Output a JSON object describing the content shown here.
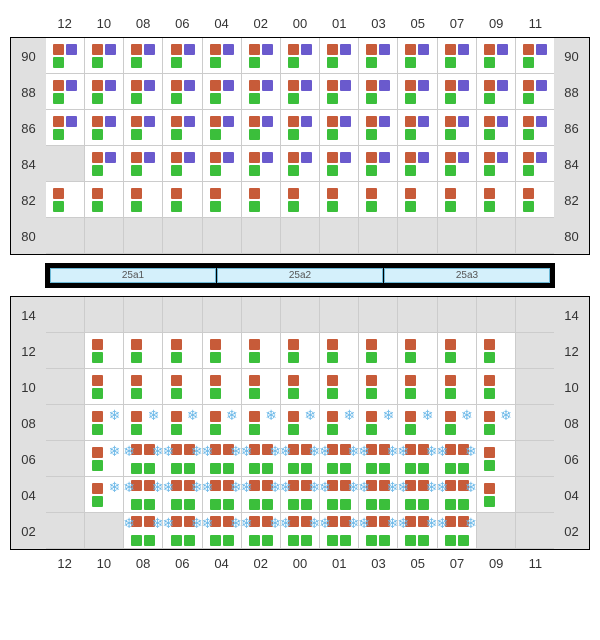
{
  "colors": {
    "orange": "#c75b39",
    "purple": "#6a5acd",
    "green": "#3bbf3b",
    "snowflake": "#6bb8e8",
    "cell_filled": "#ffffff",
    "cell_empty": "#e0e0e0",
    "grid_line": "#cccccc",
    "border": "#000000",
    "banner_bg": "#d4f0fb",
    "banner_border": "#6bb8d6"
  },
  "top": {
    "cols": [
      "12",
      "10",
      "08",
      "06",
      "04",
      "02",
      "00",
      "01",
      "03",
      "05",
      "07",
      "09",
      "11"
    ],
    "rows": [
      "90",
      "88",
      "86",
      "84",
      "82",
      "80"
    ],
    "cells": [
      [
        {
          "t": "op"
        },
        {
          "t": "op"
        },
        {
          "t": "op"
        },
        {
          "t": "op"
        },
        {
          "t": "op"
        },
        {
          "t": "op"
        },
        {
          "t": "op"
        },
        {
          "t": "op"
        },
        {
          "t": "op"
        },
        {
          "t": "op"
        },
        {
          "t": "op"
        },
        {
          "t": "op"
        },
        {
          "t": "op"
        }
      ],
      [
        {
          "t": "op"
        },
        {
          "t": "op"
        },
        {
          "t": "op"
        },
        {
          "t": "op"
        },
        {
          "t": "op"
        },
        {
          "t": "op"
        },
        {
          "t": "op"
        },
        {
          "t": "op"
        },
        {
          "t": "op"
        },
        {
          "t": "op"
        },
        {
          "t": "op"
        },
        {
          "t": "op"
        },
        {
          "t": "op"
        }
      ],
      [
        {
          "t": "op"
        },
        {
          "t": "op"
        },
        {
          "t": "op"
        },
        {
          "t": "op"
        },
        {
          "t": "op"
        },
        {
          "t": "op"
        },
        {
          "t": "op"
        },
        {
          "t": "op"
        },
        {
          "t": "op"
        },
        {
          "t": "op"
        },
        {
          "t": "op"
        },
        {
          "t": "op"
        },
        {
          "t": "op"
        }
      ],
      [
        {
          "t": "e"
        },
        {
          "t": "op"
        },
        {
          "t": "op"
        },
        {
          "t": "op"
        },
        {
          "t": "op"
        },
        {
          "t": "op"
        },
        {
          "t": "op"
        },
        {
          "t": "op"
        },
        {
          "t": "op"
        },
        {
          "t": "op"
        },
        {
          "t": "op"
        },
        {
          "t": "op"
        },
        {
          "t": "op"
        }
      ],
      [
        {
          "t": "og"
        },
        {
          "t": "og"
        },
        {
          "t": "og"
        },
        {
          "t": "og"
        },
        {
          "t": "og"
        },
        {
          "t": "og"
        },
        {
          "t": "og"
        },
        {
          "t": "og"
        },
        {
          "t": "og"
        },
        {
          "t": "og"
        },
        {
          "t": "og"
        },
        {
          "t": "og"
        },
        {
          "t": "og"
        }
      ],
      [
        {
          "t": "e"
        },
        {
          "t": "e"
        },
        {
          "t": "e"
        },
        {
          "t": "e"
        },
        {
          "t": "e"
        },
        {
          "t": "e"
        },
        {
          "t": "e"
        },
        {
          "t": "e"
        },
        {
          "t": "e"
        },
        {
          "t": "e"
        },
        {
          "t": "e"
        },
        {
          "t": "e"
        },
        {
          "t": "e"
        }
      ]
    ]
  },
  "banner": [
    "25a1",
    "25a2",
    "25a3"
  ],
  "bottom": {
    "cols": [
      "12",
      "10",
      "08",
      "06",
      "04",
      "02",
      "00",
      "01",
      "03",
      "05",
      "07",
      "09",
      "11"
    ],
    "rows": [
      "14",
      "12",
      "10",
      "08",
      "06",
      "04",
      "02"
    ],
    "cells": [
      [
        {
          "t": "e"
        },
        {
          "t": "e"
        },
        {
          "t": "e"
        },
        {
          "t": "e"
        },
        {
          "t": "e"
        },
        {
          "t": "e"
        },
        {
          "t": "e"
        },
        {
          "t": "e"
        },
        {
          "t": "e"
        },
        {
          "t": "e"
        },
        {
          "t": "e"
        },
        {
          "t": "e"
        },
        {
          "t": "e"
        }
      ],
      [
        {
          "t": "e"
        },
        {
          "t": "og"
        },
        {
          "t": "og"
        },
        {
          "t": "og"
        },
        {
          "t": "og"
        },
        {
          "t": "og"
        },
        {
          "t": "og"
        },
        {
          "t": "og"
        },
        {
          "t": "og"
        },
        {
          "t": "og"
        },
        {
          "t": "og"
        },
        {
          "t": "og"
        },
        {
          "t": "e"
        }
      ],
      [
        {
          "t": "e"
        },
        {
          "t": "og"
        },
        {
          "t": "og"
        },
        {
          "t": "og"
        },
        {
          "t": "og"
        },
        {
          "t": "og"
        },
        {
          "t": "og"
        },
        {
          "t": "og"
        },
        {
          "t": "og"
        },
        {
          "t": "og"
        },
        {
          "t": "og"
        },
        {
          "t": "og"
        },
        {
          "t": "e"
        }
      ],
      [
        {
          "t": "e"
        },
        {
          "t": "ogs"
        },
        {
          "t": "ogs"
        },
        {
          "t": "ogs"
        },
        {
          "t": "ogs"
        },
        {
          "t": "ogs"
        },
        {
          "t": "ogs"
        },
        {
          "t": "ogs"
        },
        {
          "t": "ogs"
        },
        {
          "t": "ogs"
        },
        {
          "t": "ogs"
        },
        {
          "t": "ogs"
        },
        {
          "t": "e"
        }
      ],
      [
        {
          "t": "e"
        },
        {
          "t": "ogs"
        },
        {
          "t": "ogds"
        },
        {
          "t": "ogds"
        },
        {
          "t": "ogds"
        },
        {
          "t": "ogds"
        },
        {
          "t": "ogds"
        },
        {
          "t": "ogds"
        },
        {
          "t": "ogds"
        },
        {
          "t": "ogds"
        },
        {
          "t": "ogds"
        },
        {
          "t": "og"
        },
        {
          "t": "e"
        }
      ],
      [
        {
          "t": "e"
        },
        {
          "t": "ogs"
        },
        {
          "t": "ogds"
        },
        {
          "t": "ogds"
        },
        {
          "t": "ogds"
        },
        {
          "t": "ogds"
        },
        {
          "t": "ogds"
        },
        {
          "t": "ogds"
        },
        {
          "t": "ogds"
        },
        {
          "t": "ogds"
        },
        {
          "t": "ogds"
        },
        {
          "t": "og"
        },
        {
          "t": "e"
        }
      ],
      [
        {
          "t": "e"
        },
        {
          "t": "e"
        },
        {
          "t": "ogds"
        },
        {
          "t": "ogds"
        },
        {
          "t": "ogds"
        },
        {
          "t": "ogds"
        },
        {
          "t": "ogds"
        },
        {
          "t": "ogds"
        },
        {
          "t": "ogds"
        },
        {
          "t": "ogds"
        },
        {
          "t": "ogds"
        },
        {
          "t": "e"
        },
        {
          "t": "e"
        }
      ]
    ]
  }
}
